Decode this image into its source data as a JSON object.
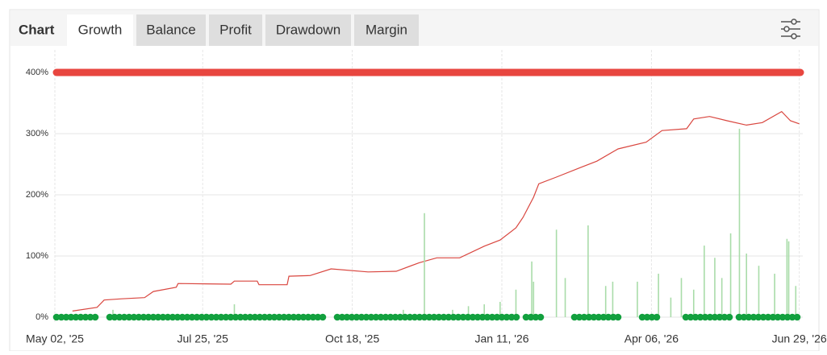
{
  "tabs": {
    "label": "Chart",
    "items": [
      "Growth",
      "Balance",
      "Profit",
      "Drawdown",
      "Margin"
    ],
    "active": 0
  },
  "chart_data": {
    "type": "line",
    "series": [
      {
        "kind": "line",
        "color": "#d9463f",
        "x": [
          "2025-05-12",
          "2025-05-26",
          "2025-05-30",
          "2025-06-09",
          "2025-06-22",
          "2025-06-27",
          "2025-07-10",
          "2025-07-11",
          "2025-08-10",
          "2025-08-12",
          "2025-08-25",
          "2025-08-26",
          "2025-09-11",
          "2025-09-12",
          "2025-09-24",
          "2025-10-06",
          "2025-10-27",
          "2025-11-12",
          "2025-11-25",
          "2025-12-05",
          "2025-12-18",
          "2026-01-01",
          "2026-01-10",
          "2026-01-19",
          "2026-01-23",
          "2026-01-29",
          "2026-02-01",
          "2026-02-11",
          "2026-02-25",
          "2026-03-06",
          "2026-03-18",
          "2026-04-03",
          "2026-04-12",
          "2026-04-26",
          "2026-04-30",
          "2026-05-09",
          "2026-05-19",
          "2026-05-30",
          "2026-06-08",
          "2026-06-19",
          "2026-06-24",
          "2026-06-29"
        ],
        "values": [
          10,
          16,
          28,
          30,
          32,
          42,
          49,
          55,
          54,
          59,
          59,
          53,
          53,
          67,
          68,
          79,
          74,
          75,
          89,
          97,
          97,
          116,
          126,
          146,
          163,
          196,
          218,
          229,
          245,
          255,
          275,
          286,
          305,
          308,
          324,
          328,
          321,
          314,
          318,
          336,
          321,
          316
        ]
      },
      {
        "kind": "bar",
        "color": "#a9dca9",
        "x": [
          "2025-06-04",
          "2025-08-12",
          "2025-10-24",
          "2025-11-16",
          "2025-11-28",
          "2025-12-14",
          "2025-12-23",
          "2026-01-01",
          "2026-01-10",
          "2026-01-19",
          "2026-01-28",
          "2026-01-29",
          "2026-02-11",
          "2026-02-16",
          "2026-03-01",
          "2026-03-11",
          "2026-03-15",
          "2026-03-29",
          "2026-04-10",
          "2026-04-17",
          "2026-04-23",
          "2026-04-30",
          "2026-05-06",
          "2026-05-12",
          "2026-05-16",
          "2026-05-21",
          "2026-05-26",
          "2026-05-30",
          "2026-06-06",
          "2026-06-15",
          "2026-06-22",
          "2026-06-23",
          "2026-06-27"
        ],
        "values": [
          12,
          21,
          5,
          12,
          170,
          12,
          18,
          21,
          25,
          45,
          91,
          58,
          143,
          64,
          150,
          51,
          58,
          58,
          71,
          32,
          64,
          45,
          117,
          97,
          64,
          137,
          308,
          104,
          84,
          71,
          128,
          124,
          51
        ]
      }
    ],
    "xlim": [
      "2025-05-02",
      "2026-07-01"
    ],
    "xticks": [
      {
        "value": "2025-05-02",
        "label": "May 02, '25"
      },
      {
        "value": "2025-07-25",
        "label": "Jul 25, '25"
      },
      {
        "value": "2025-10-18",
        "label": "Oct 18, '25"
      },
      {
        "value": "2026-01-11",
        "label": "Jan 11, '26"
      },
      {
        "value": "2026-04-06",
        "label": "Apr 06, '26"
      },
      {
        "value": "2026-06-29",
        "label": "Jun 29, '26"
      }
    ],
    "ylim": [
      0,
      400
    ],
    "yticks": [
      {
        "value": 0,
        "label": "0%"
      },
      {
        "value": 100,
        "label": "100%"
      },
      {
        "value": 200,
        "label": "200%"
      },
      {
        "value": 300,
        "label": "300%"
      },
      {
        "value": 400,
        "label": "400%"
      }
    ],
    "grid": true
  }
}
